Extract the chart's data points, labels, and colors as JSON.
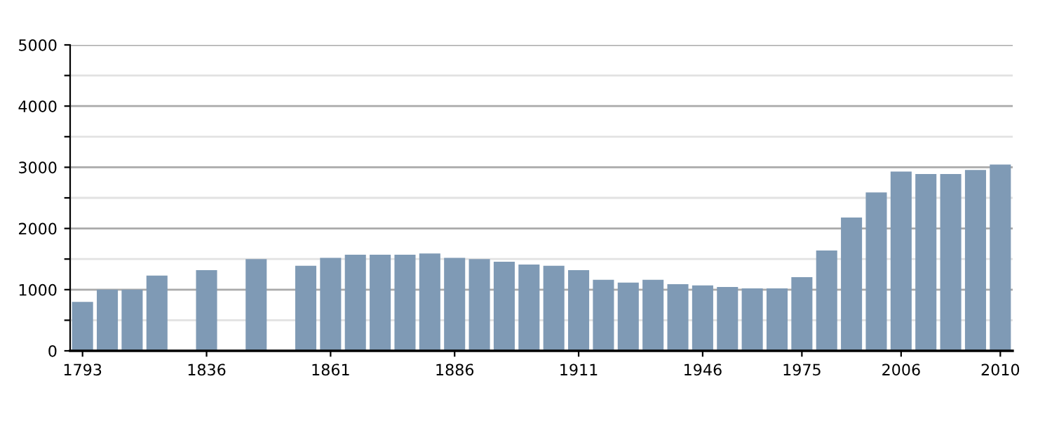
{
  "chart_data": {
    "type": "bar",
    "categories": [
      "1793",
      null,
      null,
      null,
      null,
      "1836",
      null,
      null,
      null,
      null,
      "1861",
      null,
      null,
      null,
      null,
      "1886",
      null,
      null,
      null,
      null,
      "1911",
      null,
      null,
      null,
      null,
      "1946",
      null,
      null,
      null,
      "1975",
      null,
      null,
      null,
      "2006",
      null,
      null,
      null,
      "2010"
    ],
    "values": [
      800,
      1000,
      1000,
      1230,
      null,
      1320,
      null,
      1500,
      null,
      1390,
      1520,
      1570,
      1570,
      1570,
      1590,
      1520,
      1500,
      1455,
      1410,
      1390,
      1320,
      1160,
      1115,
      1160,
      1090,
      1070,
      1045,
      1020,
      1020,
      1205,
      1640,
      2180,
      2590,
      2930,
      2890,
      2890,
      2955,
      3045
    ],
    "color": "#7f9ab5",
    "ylim": [
      0,
      5000
    ],
    "yticks": [
      0,
      {
        "value": 500,
        "label": null
      },
      1000,
      {
        "value": 1500,
        "label": null
      },
      2000,
      {
        "value": 2500,
        "label": null
      },
      3000,
      {
        "value": 3500,
        "label": null
      },
      4000,
      {
        "value": 4500,
        "label": null
      },
      5000
    ],
    "grid": "y"
  }
}
